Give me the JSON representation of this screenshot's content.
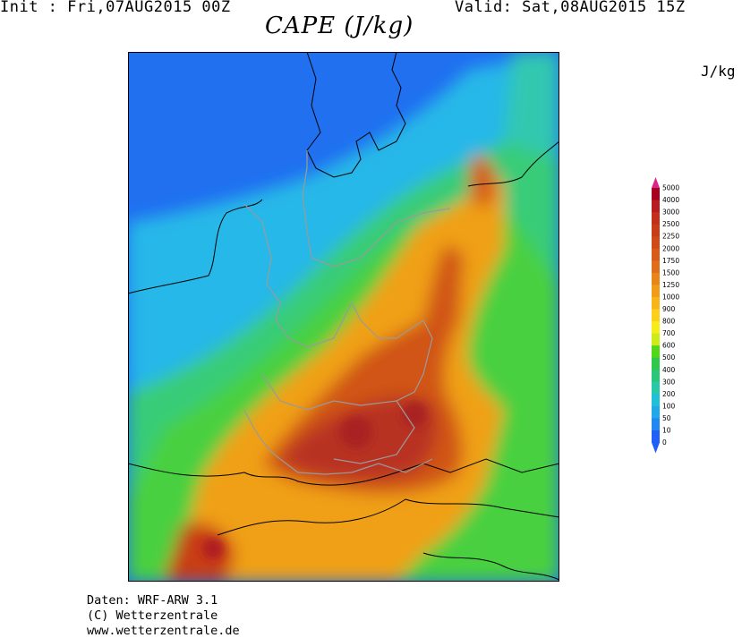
{
  "header": {
    "init_text": "Init : Fri,07AUG2015 00Z",
    "valid_text": "Valid: Sat,08AUG2015 15Z",
    "title": "CAPE (J/kg)"
  },
  "legend": {
    "unit": "J/kg",
    "levels": [
      "5000",
      "4000",
      "3000",
      "2500",
      "2250",
      "2000",
      "1750",
      "1500",
      "1250",
      "1000",
      "900",
      "800",
      "700",
      "600",
      "500",
      "400",
      "300",
      "200",
      "100",
      "50",
      "10",
      "0"
    ],
    "colors": [
      "#e0208c",
      "#a80020",
      "#b81c20",
      "#c42e1a",
      "#c83c18",
      "#d04a18",
      "#d85c18",
      "#e06e18",
      "#e88418",
      "#f09c18",
      "#f8b418",
      "#fcd018",
      "#f8ec18",
      "#ccec18",
      "#50d818",
      "#30c848",
      "#28c878",
      "#28c8a8",
      "#20c0d8",
      "#20a8e8",
      "#2088f0",
      "#2060f8"
    ]
  },
  "credits": {
    "line1": "Daten: WRF-ARW 3.1",
    "line2": "(C) Wetterzentrale",
    "line3": "www.wetterzentrale.de"
  }
}
